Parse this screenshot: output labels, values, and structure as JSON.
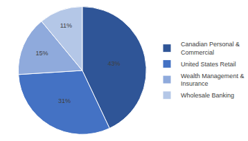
{
  "chart_data": {
    "type": "pie",
    "categories": [
      "Canadian Personal & Commercial",
      "United States Retail",
      "Wealth Management & Insurance",
      "Wholesale Banking"
    ],
    "values": [
      43,
      31,
      15,
      11
    ],
    "value_labels": [
      "43%",
      "31%",
      "15%",
      "11%"
    ],
    "colors": [
      "#2f5597",
      "#4472c4",
      "#8faadc",
      "#b4c7e7"
    ],
    "data_labels": true,
    "legend": "right"
  }
}
